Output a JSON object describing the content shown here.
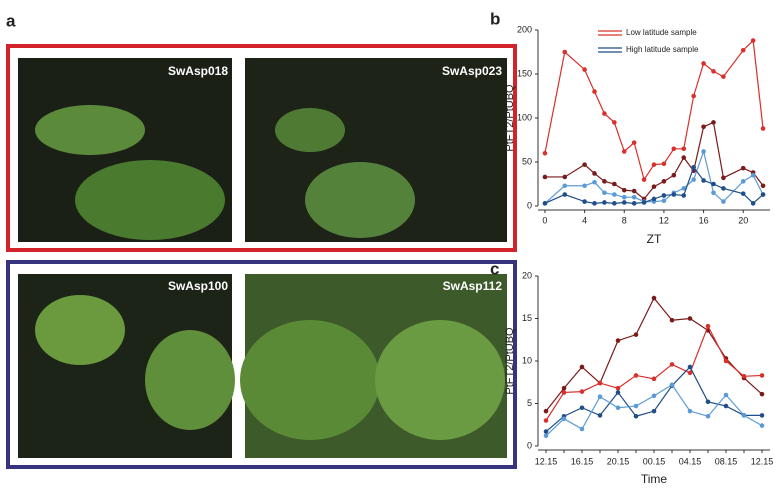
{
  "figure": {
    "panel": "a",
    "photos": [
      "SwAsp018",
      "SwAsp023",
      "SwAsp100",
      "SwAsp112"
    ]
  },
  "chart_data": [
    {
      "type": "line",
      "panel": "b",
      "ylabel": "PtFT2/PtUBQ",
      "xlabel": "ZT",
      "x": [
        0,
        2,
        4,
        5,
        6,
        7,
        8,
        9,
        10,
        11,
        12,
        13,
        14,
        15,
        16,
        17,
        18,
        20,
        21,
        22
      ],
      "xlim": [
        -0.7,
        22.7
      ],
      "xticks": [
        0,
        4,
        8,
        12,
        16,
        20
      ],
      "ylim": [
        0,
        200
      ],
      "yticks": [
        0,
        50,
        100,
        150,
        200
      ],
      "legend": [
        {
          "name": "Low latitude sample",
          "color": "#d9302b"
        },
        {
          "name": "High latitude sample",
          "color": "#1f4e8a"
        }
      ],
      "series": [
        {
          "color": "#d9302b",
          "values": [
            60,
            175,
            155,
            130,
            105,
            95,
            62,
            72,
            30,
            47,
            48,
            65,
            65,
            125,
            162,
            153,
            147,
            177,
            188,
            88
          ]
        },
        {
          "color": "#7b1a1a",
          "values": [
            33,
            33,
            47,
            37,
            28,
            25,
            18,
            17,
            8,
            22,
            28,
            35,
            55,
            40,
            90,
            95,
            32,
            43,
            38,
            23
          ]
        },
        {
          "color": "#5b9bd5",
          "values": [
            3,
            23,
            23,
            27,
            15,
            13,
            10,
            10,
            5,
            5,
            6,
            15,
            20,
            30,
            62,
            15,
            5,
            28,
            35,
            13
          ]
        },
        {
          "color": "#1f4e8a",
          "values": [
            3,
            13,
            5,
            3,
            4,
            3,
            4,
            3,
            4,
            8,
            12,
            13,
            12,
            44,
            29,
            25,
            20,
            14,
            3,
            13
          ]
        }
      ]
    },
    {
      "type": "line",
      "panel": "c",
      "ylabel": "PtFT2/PtUBQ",
      "xlabel": "Time",
      "categories": [
        "12.15",
        null,
        "16.15",
        null,
        "20.15",
        null,
        "00.15",
        null,
        "04.15",
        null,
        "08.15",
        null,
        "12.15"
      ],
      "ylim": [
        0,
        20
      ],
      "yticks": [
        0,
        5,
        10,
        15,
        20
      ],
      "series": [
        {
          "color": "#7b1a1a",
          "values": [
            4.1,
            6.8,
            9.3,
            7.4,
            12.4,
            13.1,
            17.4,
            14.8,
            15.0,
            13.6,
            10.3,
            8.0,
            6.1
          ]
        },
        {
          "color": "#d9302b",
          "values": [
            3.0,
            6.3,
            6.4,
            7.4,
            6.8,
            8.3,
            7.9,
            9.6,
            8.6,
            14.1,
            10.0,
            8.2,
            8.3
          ]
        },
        {
          "color": "#1f4e8a",
          "values": [
            1.7,
            3.5,
            4.5,
            3.6,
            6.3,
            3.5,
            4.1,
            7.1,
            9.3,
            5.2,
            4.7,
            3.6,
            3.6
          ]
        },
        {
          "color": "#5b9bd5",
          "values": [
            1.2,
            3.2,
            2.0,
            5.8,
            4.5,
            4.7,
            5.9,
            7.2,
            4.1,
            3.5,
            6.0,
            3.6,
            2.4
          ]
        }
      ]
    }
  ]
}
